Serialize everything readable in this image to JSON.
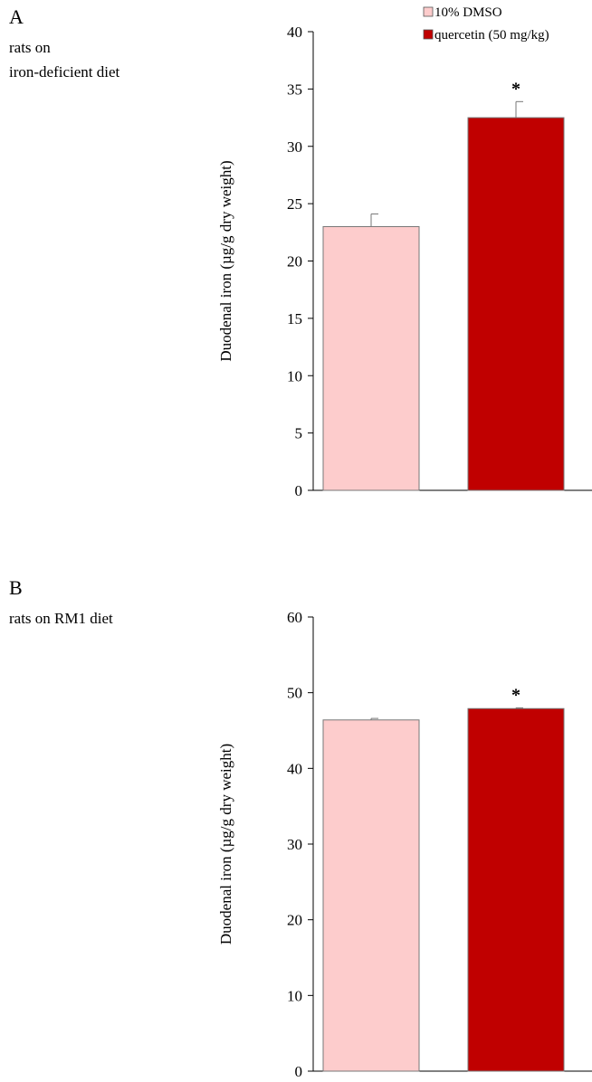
{
  "legend": [
    {
      "label": "10% DMSO",
      "color": "#fdcccc"
    },
    {
      "label": "quercetin (50 mg/kg)",
      "color": "#c00000"
    }
  ],
  "chart_data": [
    {
      "type": "bar",
      "panel": "A",
      "caption": [
        "rats on",
        "iron-deficient diet"
      ],
      "ylabel": "Duodenal iron (µg/g dry weight)",
      "ylim": [
        0,
        40
      ],
      "yticks": [
        0,
        5,
        10,
        15,
        20,
        25,
        30,
        35,
        40
      ],
      "categories": [
        "10% DMSO",
        "quercetin (50 mg/kg)"
      ],
      "values": [
        23.0,
        32.5
      ],
      "errors": [
        1.1,
        1.4
      ],
      "colors": [
        "#fdcccc",
        "#c00000"
      ],
      "significance": [
        "",
        "*"
      ]
    },
    {
      "type": "bar",
      "panel": "B",
      "caption": [
        "rats on RM1 diet"
      ],
      "ylabel": "Duodenal iron (µg/g dry weight)",
      "ylim": [
        0,
        60
      ],
      "yticks": [
        0,
        10,
        20,
        30,
        40,
        50,
        60
      ],
      "categories": [
        "10% DMSO",
        "quercetin (50 mg/kg)"
      ],
      "values": [
        46.4,
        47.9
      ],
      "errors": [
        0.2,
        0.1
      ],
      "colors": [
        "#fdcccc",
        "#c00000"
      ],
      "significance": [
        "",
        "*"
      ]
    }
  ]
}
